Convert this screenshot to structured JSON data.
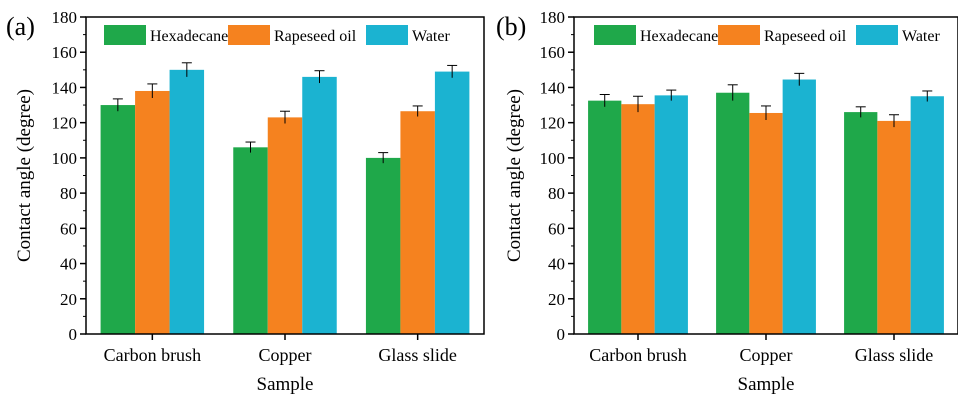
{
  "figure": {
    "panels": [
      {
        "label": "(a)",
        "chart_data": {
          "type": "bar",
          "categories": [
            "Carbon brush",
            "Copper",
            "Glass slide"
          ],
          "series": [
            {
              "name": "Hexadecane",
              "color": "#1fa84a",
              "values": [
                130,
                106,
                100
              ],
              "errors": [
                3.5,
                3,
                3
              ]
            },
            {
              "name": "Rapeseed oil",
              "color": "#f5821f",
              "values": [
                138,
                123,
                126.5
              ],
              "errors": [
                4,
                3.5,
                3
              ]
            },
            {
              "name": "Water",
              "color": "#1bb3d1",
              "values": [
                150,
                146,
                149
              ],
              "errors": [
                4,
                3.5,
                3.5
              ]
            }
          ],
          "xlabel": "Sample",
          "ylabel": "Contact angle (degree)",
          "ylim": [
            0,
            180
          ],
          "yticks": [
            0,
            20,
            40,
            60,
            80,
            100,
            120,
            140,
            160,
            180
          ],
          "grid": false,
          "legend_position": "top"
        }
      },
      {
        "label": "(b)",
        "chart_data": {
          "type": "bar",
          "categories": [
            "Carbon brush",
            "Copper",
            "Glass slide"
          ],
          "series": [
            {
              "name": "Hexadecane",
              "color": "#1fa84a",
              "values": [
                132.5,
                137,
                126
              ],
              "errors": [
                3.5,
                4.5,
                3
              ]
            },
            {
              "name": "Rapeseed oil",
              "color": "#f5821f",
              "values": [
                130.5,
                125.5,
                121
              ],
              "errors": [
                4.5,
                4,
                3.5
              ]
            },
            {
              "name": "Water",
              "color": "#1bb3d1",
              "values": [
                135.5,
                144.5,
                135
              ],
              "errors": [
                3,
                3.5,
                3
              ]
            }
          ],
          "xlabel": "Sample",
          "ylabel": "Contact angle (degree)",
          "ylim": [
            0,
            180
          ],
          "yticks": [
            0,
            20,
            40,
            60,
            80,
            100,
            120,
            140,
            160,
            180
          ],
          "grid": false,
          "legend_position": "top"
        }
      }
    ]
  }
}
